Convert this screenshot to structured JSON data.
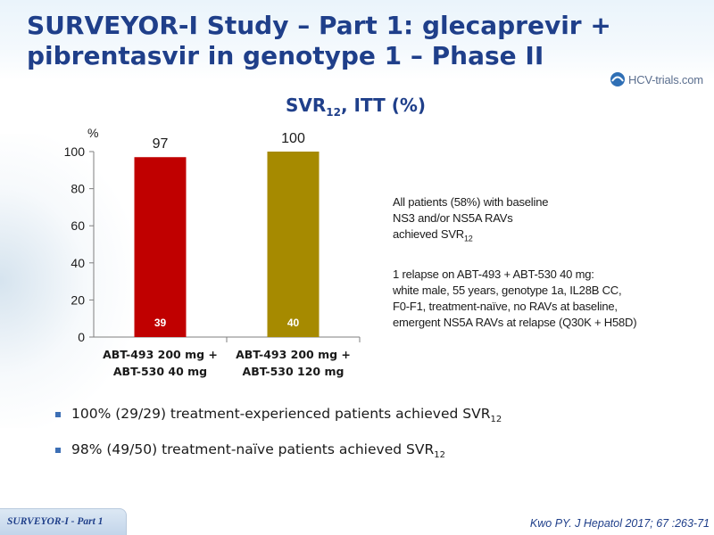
{
  "header": {
    "title_line1": "SURVEYOR-I Study – Part 1: glecaprevir +",
    "title_line2": "pibrentasvir in genotype 1 – Phase II",
    "logo_text": "HCV-trials.com"
  },
  "chart_title": {
    "main": "SVR",
    "sub": "12",
    "rest": ", ITT (%)"
  },
  "chart_data": {
    "type": "bar",
    "ylabel": "%",
    "ylim": [
      0,
      100
    ],
    "yticks": [
      0,
      20,
      40,
      60,
      80,
      100
    ],
    "grid": false,
    "categories": [
      [
        "ABT-493 200 mg +",
        "ABT-530 40 mg"
      ],
      [
        "ABT-493 200 mg +",
        "ABT-530 120 mg"
      ]
    ],
    "values": [
      97,
      100
    ],
    "n_labels": [
      "39",
      "40"
    ],
    "colors": [
      "#c00000",
      "#a68a00"
    ]
  },
  "notes": {
    "note1": {
      "l1": "All patients (58%) with baseline",
      "l2": "NS3 and/or NS5A RAVs",
      "l3": "achieved SVR",
      "l3_sub": "12"
    },
    "note2": {
      "l1": "1 relapse on ABT-493 + ABT-530 40 mg:",
      "l2": "white male, 55 years, genotype 1a, IL28B CC,",
      "l3": "F0-F1, treatment-naïve, no RAVs at baseline,",
      "l4": "emergent NS5A RAVs at relapse (Q30K + H58D)"
    }
  },
  "bullets": [
    {
      "text": "100% (29/29) treatment-experienced patients achieved SVR",
      "sub": "12"
    },
    {
      "text": "98% (49/50) treatment-naïve patients achieved SVR",
      "sub": "12"
    }
  ],
  "footer": {
    "tab": "SURVEYOR-I - Part 1",
    "reference": "Kwo PY. J Hepatol 2017; 67 :263-71"
  },
  "colors": {
    "title": "#1f3f8a",
    "bar1": "#c00000",
    "bar2": "#a68a00",
    "bullet": "#3d6fb5"
  }
}
